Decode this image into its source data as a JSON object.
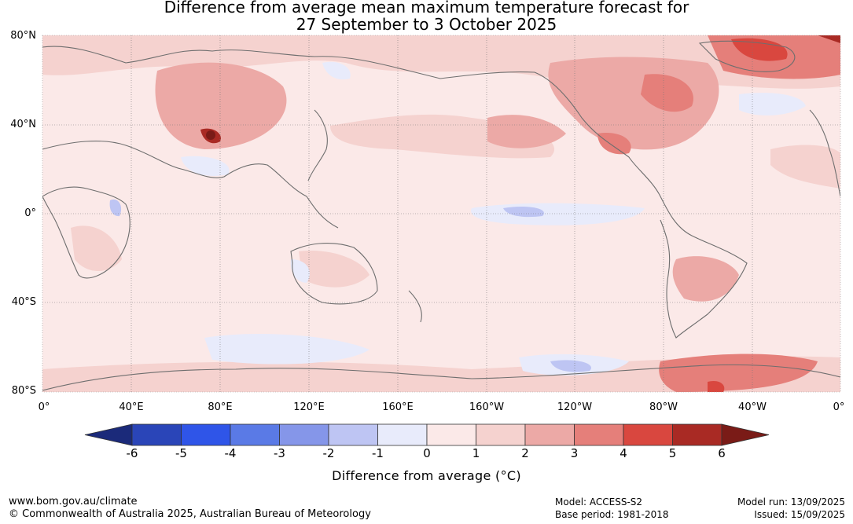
{
  "title": {
    "line1": "Difference from average mean maximum temperature forecast for",
    "line2": "27 September to 3 October 2025"
  },
  "map": {
    "lat_labels": [
      "80°N",
      "40°N",
      "0°",
      "40°S",
      "80°S"
    ],
    "lon_labels": [
      "0°",
      "40°E",
      "80°E",
      "120°E",
      "160°E",
      "160°W",
      "120°W",
      "80°W",
      "40°W",
      "0°"
    ],
    "coastline_color": "#6e6e6e",
    "grid_style": "dotted"
  },
  "legend": {
    "title": "Difference from average (°C)",
    "ticks": [
      "-6",
      "-5",
      "-4",
      "-3",
      "-2",
      "-1",
      "0",
      "1",
      "2",
      "3",
      "4",
      "5",
      "6"
    ],
    "colors": [
      "#1b2a7a",
      "#2a45b8",
      "#2f55e8",
      "#5a7ae6",
      "#8596e9",
      "#bec5f3",
      "#e8ebfb",
      "#fbe9e8",
      "#f5d2cf",
      "#eca9a6",
      "#e57f7a",
      "#d9473f",
      "#a92a24",
      "#7a1b17"
    ]
  },
  "footer": {
    "website": "www.bom.gov.au/climate",
    "copyright": "© Commonwealth of Australia 2025, Australian Bureau of Meteorology",
    "model": "Model: ACCESS-S2",
    "base_period": "Base period: 1981-2018",
    "model_run": "Model run: 13/09/2025",
    "issued": "Issued: 15/09/2025"
  }
}
